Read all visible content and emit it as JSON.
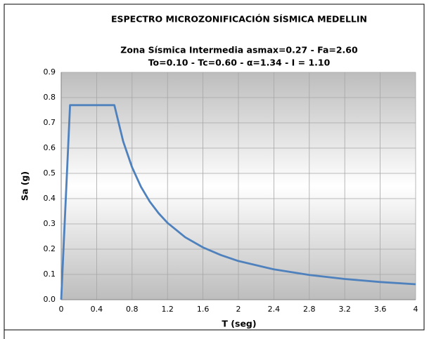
{
  "chart_data": {
    "type": "line",
    "title": "ESPECTRO MICROZONIFICACIÓN SÍSMICA MEDELLIN",
    "subtitle": [
      "Zona Sísmica Intermedia asmax=0.27 - Fa=2.60",
      "To=0.10 - Tc=0.60 - α=1.34 - I = 1.10"
    ],
    "x_label": "T (seg)",
    "y_label": "Sa (g)",
    "x": [
      0,
      0.1,
      0.6,
      0.7,
      0.8,
      0.9,
      1.0,
      1.1,
      1.2,
      1.4,
      1.6,
      1.8,
      2.0,
      2.4,
      2.8,
      3.2,
      3.6,
      4.0
    ],
    "series": [
      {
        "color": "#4f81bd",
        "values": [
          0,
          0.77,
          0.77,
          0.626,
          0.524,
          0.447,
          0.388,
          0.342,
          0.304,
          0.247,
          0.207,
          0.177,
          0.153,
          0.12,
          0.098,
          0.082,
          0.07,
          0.061
        ]
      }
    ],
    "xlim": [
      0,
      4
    ],
    "xticks": [
      0,
      0.4,
      0.8,
      1.2,
      1.6,
      2,
      2.4,
      2.8,
      3.2,
      3.6,
      4
    ],
    "ylim": [
      0,
      0.9
    ],
    "yticks": [
      {
        "value": 0,
        "label": "0.0"
      },
      0.1,
      0.2,
      0.3,
      0.4,
      0.5,
      0.6,
      0.7,
      0.8,
      0.9
    ],
    "grid": true
  }
}
